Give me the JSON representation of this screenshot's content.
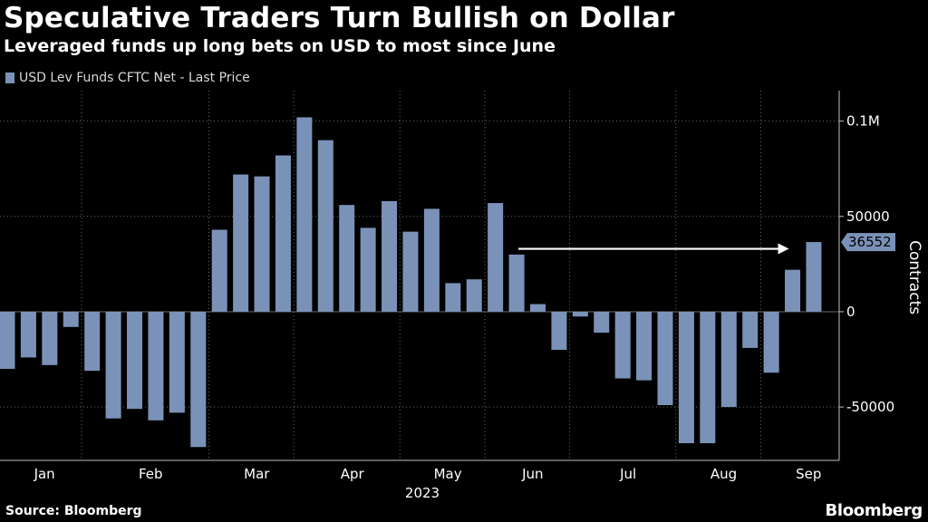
{
  "header": {
    "title": "Speculative Traders Turn Bullish on Dollar",
    "subtitle": "Leveraged funds up long bets on USD to most since June"
  },
  "legend": {
    "label": "USD Lev Funds CFTC Net - Last Price"
  },
  "footer": {
    "source": "Source: Bloomberg",
    "brand": "Bloomberg"
  },
  "colors": {
    "bar": "#7b92b8",
    "background": "#000000",
    "grid": "#6a6a6a",
    "arrow": "#ffffff",
    "label_bg": "#7b92b8"
  },
  "chart_data": {
    "type": "bar",
    "title": "Speculative Traders Turn Bullish on Dollar",
    "subtitle": "Leveraged funds up long bets on USD to most since June",
    "ylabel": "Contracts",
    "xlabel": "2023",
    "year_label": "2023",
    "ylim": [
      -78000,
      116000
    ],
    "y_ticks": [
      {
        "value": 100000,
        "label": "0.1M"
      },
      {
        "value": 50000,
        "label": "50000"
      },
      {
        "value": 0,
        "label": "0"
      },
      {
        "value": -50000,
        "label": "-50000"
      }
    ],
    "month_labels": [
      "Jan",
      "Feb",
      "Mar",
      "Apr",
      "May",
      "Jun",
      "Jul",
      "Aug",
      "Sep"
    ],
    "series": [
      {
        "name": "USD Lev Funds CFTC Net - Last Price",
        "values": [
          -30000,
          -24000,
          -28000,
          -8000,
          -31000,
          -56000,
          -51000,
          -57000,
          -53000,
          -71000,
          43000,
          72000,
          71000,
          82000,
          102000,
          90000,
          56000,
          44000,
          58000,
          42000,
          54000,
          15000,
          17000,
          57000,
          30000,
          4000,
          -20000,
          -2500,
          -11000,
          -35000,
          -36000,
          -49000,
          -69000,
          -69000,
          -50000,
          -19000,
          -32000,
          22000,
          36552
        ]
      }
    ],
    "last_value_label": "36552",
    "annotation": "arrow from June level to latest value"
  }
}
